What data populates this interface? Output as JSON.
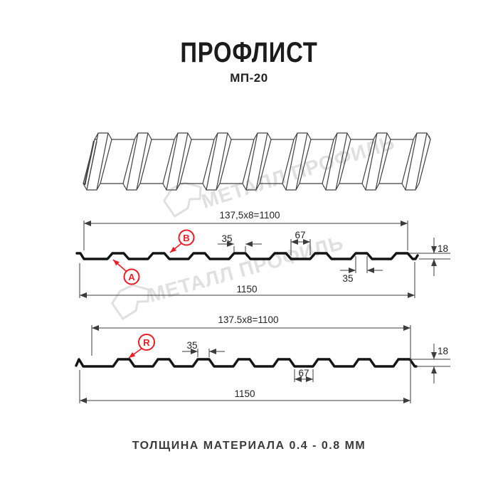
{
  "header": {
    "title": "ПРОФЛИСТ",
    "subtitle": "МП-20"
  },
  "footer": {
    "thickness_note": "ТОЛЩИНА МАТЕРИАЛА 0.4 - 0.8 ММ"
  },
  "watermark": {
    "brand": "МЕТАЛЛ ПРОФИЛЬ"
  },
  "colors": {
    "accent_red": "#ee1c25",
    "profile_line": "#131313",
    "dimension_line": "#3c3c3c",
    "watermark_gray": "#e0e0e0"
  },
  "section_a": {
    "marker_a": "A",
    "marker_b": "B",
    "dim_pitch": "137,5x8=1100",
    "dim_rib_top": "35",
    "dim_valley": "67",
    "dim_height": "18",
    "dim_rib_top_2": "35",
    "dim_total": "1150"
  },
  "section_r": {
    "marker_r": "R",
    "dim_pitch": "137.5x8=1100",
    "dim_rib_top": "35",
    "dim_valley": "67",
    "dim_height": "18",
    "dim_total": "1150"
  }
}
